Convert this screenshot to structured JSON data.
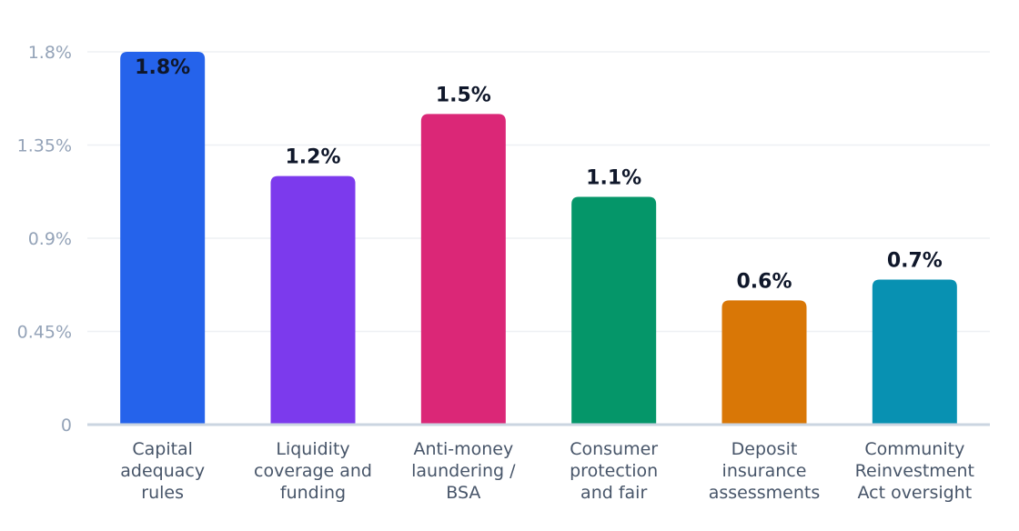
{
  "chart_data": {
    "type": "bar",
    "title": "",
    "xlabel": "",
    "ylabel": "",
    "ylim": [
      0,
      1.8
    ],
    "yticks": [
      {
        "value": 0,
        "label": "0"
      },
      {
        "value": 0.45,
        "label": "0.45%"
      },
      {
        "value": 0.9,
        "label": "0.9%"
      },
      {
        "value": 1.35,
        "label": "1.35%"
      },
      {
        "value": 1.8,
        "label": "1.8%"
      }
    ],
    "grid": true,
    "legend": "none",
    "categories": [
      [
        "Capital",
        "adequacy",
        "rules"
      ],
      [
        "Liquidity",
        "coverage and",
        "funding"
      ],
      [
        "Anti-money",
        "laundering /",
        "BSA"
      ],
      [
        "Consumer",
        "protection",
        "and fair"
      ],
      [
        "Deposit",
        "insurance",
        "assessments"
      ],
      [
        "Community",
        "Reinvestment",
        "Act oversight"
      ]
    ],
    "values": [
      1.8,
      1.2,
      1.5,
      1.1,
      0.6,
      0.7
    ],
    "value_labels": [
      "1.8%",
      "1.2%",
      "1.5%",
      "1.1%",
      "0.6%",
      "0.7%"
    ],
    "colors": [
      "#2563eb",
      "#7c3aed",
      "#db2777",
      "#059669",
      "#d97706",
      "#0891b2"
    ]
  }
}
